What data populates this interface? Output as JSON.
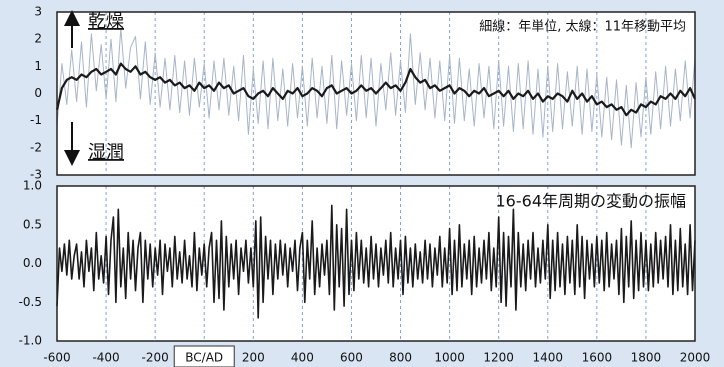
{
  "chart_data": [
    {
      "type": "line",
      "annotations": [
        "乾燥",
        "湿潤",
        "細線：年単位, 太線：11年移動平均"
      ],
      "x": [
        -600,
        -580,
        -560,
        -540,
        -520,
        -500,
        -480,
        -460,
        -440,
        -420,
        -400,
        -380,
        -360,
        -340,
        -320,
        -300,
        -280,
        -260,
        -240,
        -220,
        -200,
        -180,
        -160,
        -140,
        -120,
        -100,
        -80,
        -60,
        -40,
        -20,
        0,
        20,
        40,
        60,
        80,
        100,
        120,
        140,
        160,
        180,
        200,
        220,
        240,
        260,
        280,
        300,
        320,
        340,
        360,
        380,
        400,
        420,
        440,
        460,
        480,
        500,
        520,
        540,
        560,
        580,
        600,
        620,
        640,
        660,
        680,
        700,
        720,
        740,
        760,
        780,
        800,
        820,
        840,
        860,
        880,
        900,
        920,
        940,
        960,
        980,
        1000,
        1020,
        1040,
        1060,
        1080,
        1100,
        1120,
        1140,
        1160,
        1180,
        1200,
        1220,
        1240,
        1260,
        1280,
        1300,
        1320,
        1340,
        1360,
        1380,
        1400,
        1420,
        1440,
        1460,
        1480,
        1500,
        1520,
        1540,
        1560,
        1580,
        1600,
        1620,
        1640,
        1660,
        1680,
        1700,
        1720,
        1740,
        1760,
        1780,
        1800,
        1820,
        1840,
        1860,
        1880,
        1900,
        1920,
        1940,
        1960,
        1980,
        2000
      ],
      "series": [
        {
          "color": "#a7b5c9",
          "values": [
            -1.2,
            1.1,
            -0.4,
            1.6,
            -0.3,
            1.9,
            -0.5,
            2.2,
            0.1,
            1.8,
            -0.2,
            2.0,
            -0.3,
            2.4,
            0.2,
            1.7,
            2.1,
            -0.2,
            1.9,
            -0.4,
            1.5,
            -0.5,
            1.3,
            -0.6,
            1.4,
            -0.7,
            1.2,
            -0.8,
            1.3,
            -0.5,
            1.1,
            -0.9,
            1.2,
            -0.6,
            1.3,
            -0.8,
            1.0,
            -1.0,
            1.4,
            -1.5,
            0.9,
            -1.1,
            1.2,
            -1.3,
            1.3,
            -1.0,
            0.9,
            -1.2,
            1.1,
            -0.9,
            1.0,
            -1.2,
            1.3,
            -0.9,
            1.0,
            -1.1,
            1.4,
            -1.3,
            1.2,
            -0.8,
            1.1,
            -1.0,
            1.4,
            -0.9,
            1.3,
            -1.2,
            1.1,
            -0.6,
            1.5,
            -0.8,
            1.2,
            -0.7,
            2.2,
            -0.4,
            1.5,
            -0.6,
            1.3,
            -0.9,
            1.2,
            -1.0,
            1.4,
            -1.1,
            1.3,
            -1.0,
            0.9,
            -1.2,
            1.1,
            -0.9,
            1.0,
            -1.3,
            1.2,
            -1.2,
            1.0,
            -1.4,
            1.1,
            -1.3,
            1.2,
            -1.5,
            0.9,
            -1.6,
            1.0,
            -1.4,
            1.1,
            -1.3,
            0.8,
            -1.2,
            1.0,
            -1.5,
            0.9,
            -1.4,
            0.7,
            -1.6,
            0.6,
            -1.7,
            0.5,
            -1.9,
            0.3,
            -2.0,
            0.4,
            -1.6,
            0.6,
            -1.5,
            0.8,
            -1.3,
            1.0,
            -1.2,
            0.9,
            -1.0,
            1.2,
            -0.9,
            1.3
          ]
        },
        {
          "color": "#1a1a1a",
          "values": [
            -0.6,
            0.2,
            0.5,
            0.6,
            0.5,
            0.7,
            0.6,
            0.8,
            0.9,
            0.7,
            0.8,
            0.9,
            0.7,
            1.1,
            0.9,
            0.8,
            1.0,
            0.7,
            0.8,
            0.6,
            0.5,
            0.6,
            0.4,
            0.5,
            0.3,
            0.4,
            0.2,
            0.3,
            0.1,
            0.4,
            0.2,
            0.3,
            0.1,
            0.4,
            0.2,
            0.3,
            0.0,
            0.1,
            0.2,
            -0.1,
            -0.2,
            0.0,
            0.1,
            -0.1,
            0.2,
            0.0,
            -0.2,
            0.1,
            0.0,
            0.2,
            -0.1,
            0.0,
            0.2,
            0.1,
            -0.1,
            0.2,
            0.3,
            0.0,
            0.1,
            0.2,
            0.0,
            0.1,
            0.3,
            0.1,
            0.2,
            0.0,
            0.2,
            0.4,
            0.2,
            0.3,
            0.1,
            0.4,
            0.9,
            0.6,
            0.4,
            0.5,
            0.2,
            0.3,
            0.1,
            0.2,
            0.3,
            0.0,
            0.2,
            0.1,
            -0.1,
            0.1,
            0.0,
            0.2,
            -0.1,
            0.0,
            0.1,
            -0.1,
            0.1,
            -0.2,
            0.0,
            -0.1,
            0.1,
            -0.2,
            0.0,
            -0.3,
            -0.1,
            -0.2,
            0.0,
            -0.1,
            -0.3,
            0.1,
            -0.2,
            0.0,
            -0.3,
            -0.1,
            -0.4,
            -0.3,
            -0.5,
            -0.4,
            -0.6,
            -0.5,
            -0.8,
            -0.6,
            -0.7,
            -0.4,
            -0.5,
            -0.3,
            -0.4,
            -0.1,
            -0.2,
            0.0,
            -0.2,
            0.1,
            -0.1,
            0.2,
            -0.2
          ]
        }
      ],
      "xlim": [
        -600,
        2000
      ],
      "xticks": [
        -600,
        -400,
        -200,
        0,
        200,
        400,
        600,
        800,
        1000,
        1200,
        1400,
        1600,
        1800,
        2000
      ],
      "ylim": [
        -3,
        3
      ],
      "yticks": [
        3,
        2,
        1,
        0,
        -1,
        -2,
        -3
      ],
      "grid": true
    },
    {
      "type": "line",
      "annotations": [
        "16-64年周期の変動の振幅"
      ],
      "x": [
        -600,
        -590,
        -580,
        -570,
        -560,
        -550,
        -540,
        -530,
        -520,
        -510,
        -500,
        -490,
        -480,
        -470,
        -460,
        -450,
        -440,
        -430,
        -420,
        -410,
        -400,
        -390,
        -380,
        -370,
        -360,
        -350,
        -340,
        -330,
        -320,
        -310,
        -300,
        -290,
        -280,
        -270,
        -260,
        -250,
        -240,
        -230,
        -220,
        -210,
        -200,
        -190,
        -180,
        -170,
        -160,
        -150,
        -140,
        -130,
        -120,
        -110,
        -100,
        -90,
        -80,
        -70,
        -60,
        -50,
        -40,
        -30,
        -20,
        -10,
        0,
        10,
        20,
        30,
        40,
        50,
        60,
        70,
        80,
        90,
        100,
        110,
        120,
        130,
        140,
        150,
        160,
        170,
        180,
        190,
        200,
        210,
        220,
        230,
        240,
        250,
        260,
        270,
        280,
        290,
        300,
        310,
        320,
        330,
        340,
        350,
        360,
        370,
        380,
        390,
        400,
        410,
        420,
        430,
        440,
        450,
        460,
        470,
        480,
        490,
        500,
        510,
        520,
        530,
        540,
        550,
        560,
        570,
        580,
        590,
        600,
        610,
        620,
        630,
        640,
        650,
        660,
        670,
        680,
        690,
        700,
        710,
        720,
        730,
        740,
        750,
        760,
        770,
        780,
        790,
        800,
        810,
        820,
        830,
        840,
        850,
        860,
        870,
        880,
        890,
        900,
        910,
        920,
        930,
        940,
        950,
        960,
        970,
        980,
        990,
        1000,
        1010,
        1020,
        1030,
        1040,
        1050,
        1060,
        1070,
        1080,
        1090,
        1100,
        1110,
        1120,
        1130,
        1140,
        1150,
        1160,
        1170,
        1180,
        1190,
        1200,
        1210,
        1220,
        1230,
        1240,
        1250,
        1260,
        1270,
        1280,
        1290,
        1300,
        1310,
        1320,
        1330,
        1340,
        1350,
        1360,
        1370,
        1380,
        1390,
        1400,
        1410,
        1420,
        1430,
        1440,
        1450,
        1460,
        1470,
        1480,
        1490,
        1500,
        1510,
        1520,
        1530,
        1540,
        1550,
        1560,
        1570,
        1580,
        1590,
        1600,
        1610,
        1620,
        1630,
        1640,
        1650,
        1660,
        1670,
        1680,
        1690,
        1700,
        1710,
        1720,
        1730,
        1740,
        1750,
        1760,
        1770,
        1780,
        1790,
        1800,
        1810,
        1820,
        1830,
        1840,
        1850,
        1860,
        1870,
        1880,
        1890,
        1900,
        1910,
        1920,
        1930,
        1940,
        1950,
        1960,
        1970,
        1980,
        1990,
        2000
      ],
      "series": [
        {
          "color": "#1a1a1a",
          "values": [
            -0.55,
            0.2,
            -0.1,
            0.25,
            -0.15,
            0.3,
            -0.2,
            0.1,
            0.25,
            -0.2,
            0.15,
            -0.3,
            0.3,
            -0.1,
            0.2,
            -0.35,
            0.4,
            -0.2,
            0.1,
            -0.25,
            0.35,
            -0.4,
            0.3,
            0.6,
            -0.5,
            0.7,
            -0.3,
            0.2,
            -0.45,
            0.4,
            -0.2,
            0.3,
            -0.35,
            0.2,
            0.4,
            -0.5,
            0.3,
            -0.2,
            0.25,
            -0.3,
            0.2,
            -0.15,
            0.3,
            -0.4,
            0.25,
            -0.1,
            0.2,
            -0.3,
            0.35,
            -0.2,
            0.15,
            -0.25,
            0.3,
            -0.2,
            0.1,
            -0.3,
            0.4,
            -0.35,
            0.2,
            -0.15,
            0.25,
            -0.3,
            0.2,
            0.4,
            -0.5,
            0.3,
            -0.45,
            0.55,
            -0.6,
            0.35,
            -0.3,
            0.25,
            -0.2,
            0.3,
            -0.4,
            0.2,
            -0.1,
            0.3,
            -0.25,
            0.2,
            -0.3,
            0.55,
            -0.7,
            0.6,
            -0.5,
            0.35,
            -0.2,
            0.3,
            -0.4,
            0.25,
            -0.2,
            0.3,
            -0.15,
            0.25,
            -0.3,
            0.2,
            -0.1,
            0.3,
            -0.35,
            0.2,
            0.4,
            -0.5,
            0.3,
            -0.2,
            0.55,
            -0.4,
            0.2,
            -0.3,
            0.25,
            -0.15,
            0.3,
            -0.4,
            0.75,
            -0.6,
            0.5,
            -0.3,
            0.45,
            -0.55,
            0.7,
            -0.4,
            0.3,
            -0.35,
            0.4,
            -0.2,
            0.3,
            -0.25,
            0.2,
            -0.3,
            0.35,
            -0.2,
            0.25,
            -0.3,
            0.2,
            -0.15,
            0.3,
            -0.25,
            0.4,
            -0.3,
            0.2,
            -0.2,
            0.3,
            -0.4,
            0.35,
            -0.25,
            0.2,
            -0.3,
            0.25,
            -0.2,
            0.15,
            -0.25,
            0.3,
            -0.2,
            0.25,
            -0.3,
            0.2,
            -0.15,
            0.35,
            -0.3,
            0.2,
            -0.25,
            0.45,
            -0.4,
            0.3,
            -0.35,
            0.5,
            -0.3,
            0.25,
            -0.2,
            0.3,
            -0.4,
            0.35,
            -0.3,
            0.2,
            -0.25,
            0.3,
            -0.2,
            0.4,
            -0.35,
            0.2,
            -0.3,
            0.6,
            -0.5,
            0.4,
            -0.55,
            0.35,
            -0.3,
            0.7,
            -0.6,
            0.4,
            -0.3,
            0.25,
            -0.35,
            0.3,
            -0.2,
            0.4,
            -0.3,
            0.2,
            -0.25,
            0.3,
            -0.2,
            0.5,
            -0.45,
            0.3,
            -0.35,
            0.4,
            -0.3,
            0.25,
            -0.4,
            0.35,
            -0.25,
            0.3,
            -0.4,
            0.5,
            -0.3,
            0.35,
            -0.45,
            0.3,
            -0.2,
            0.25,
            -0.3,
            0.35,
            -0.25,
            0.3,
            -0.35,
            0.4,
            -0.3,
            0.25,
            -0.2,
            0.3,
            -0.4,
            0.45,
            -0.5,
            0.35,
            -0.3,
            0.55,
            -0.45,
            0.3,
            -0.35,
            0.4,
            -0.3,
            0.3,
            -0.35,
            0.25,
            -0.3,
            0.4,
            -0.25,
            0.3,
            -0.2,
            0.35,
            -0.3,
            0.5,
            -0.4,
            0.3,
            -0.35,
            0.45,
            -0.3,
            0.25,
            -0.4,
            0.5,
            -0.35,
            0.3
          ]
        }
      ],
      "xlim": [
        -600,
        2000
      ],
      "xticks": [
        -600,
        -400,
        -200,
        {
          "value": 0,
          "label": "BC/AD"
        },
        200,
        400,
        600,
        800,
        1000,
        1200,
        1400,
        1600,
        1800,
        2000
      ],
      "ylim": [
        -1,
        1
      ],
      "yticks": [
        {
          "value": 1,
          "label": "1.0"
        },
        {
          "value": 0.5,
          "label": "0.5"
        },
        {
          "value": 0,
          "label": "0.0"
        },
        {
          "value": -0.5,
          "label": "-0.5"
        },
        {
          "value": -1,
          "label": "-1.0"
        }
      ],
      "grid": true
    }
  ]
}
